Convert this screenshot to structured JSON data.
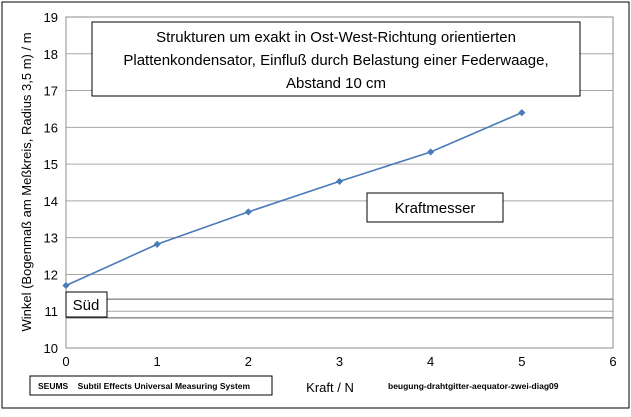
{
  "chart_data": {
    "type": "line",
    "title_lines": [
      "Strukturen um exakt in Ost-West-Richtung orientierten",
      "Plattenkondensator, Einfluß durch Belastung einer Federwaage,",
      "Abstand 10 cm"
    ],
    "xlabel": "Kraft / N",
    "ylabel": "Winkel (Bogenmaß am Meßkreis, Radius 3,5 m) / m",
    "xlim": [
      0,
      6
    ],
    "ylim": [
      10,
      19
    ],
    "x_ticks": [
      0,
      1,
      2,
      3,
      4,
      5,
      6
    ],
    "y_ticks": [
      10,
      11,
      12,
      13,
      14,
      15,
      16,
      17,
      18,
      19
    ],
    "grid": "horizontal",
    "series": [
      {
        "color": "#4a7ab8",
        "x": [
          0,
          1,
          2,
          3,
          4,
          5
        ],
        "y": [
          11.7,
          12.82,
          13.7,
          14.53,
          15.33,
          16.4
        ]
      }
    ],
    "reference_lines": [
      11.33,
      10.82
    ],
    "annotations": {
      "sued": "Süd",
      "kraftmesser": "Kraftmesser"
    },
    "footer": {
      "left": "SEUMS    Subtil Effects Universal Measuring System",
      "right": "beugung-drahtgitter-aequator-zwei-diag09"
    }
  }
}
